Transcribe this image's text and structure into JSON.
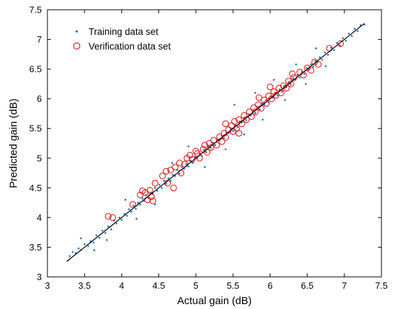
{
  "chart_data": {
    "type": "scatter",
    "xlabel": "Actual gain (dB)",
    "ylabel": "Predicted gain (dB)",
    "xlim": [
      3,
      7.5
    ],
    "ylim": [
      3,
      7.5
    ],
    "xticks": [
      "3",
      "3.5",
      "4",
      "4.5",
      "5",
      "5.5",
      "6",
      "6.5",
      "7",
      "7.5"
    ],
    "yticks": [
      "3",
      "3.5",
      "4",
      "4.5",
      "5",
      "5.5",
      "6",
      "6.5",
      "7",
      "7.5"
    ],
    "grid": false,
    "legend_position": "top-left",
    "fit_line": {
      "x": [
        3.27,
        7.27
      ],
      "y": [
        3.27,
        7.27
      ]
    },
    "series": [
      {
        "name": "Training data set",
        "marker": "dot",
        "color": "#1f6fb2",
        "points": [
          [
            3.27,
            3.27
          ],
          [
            3.3,
            3.35
          ],
          [
            3.34,
            3.42
          ],
          [
            3.38,
            3.4
          ],
          [
            3.42,
            3.48
          ],
          [
            3.45,
            3.45
          ],
          [
            3.5,
            3.55
          ],
          [
            3.55,
            3.52
          ],
          [
            3.58,
            3.6
          ],
          [
            3.62,
            3.58
          ],
          [
            3.66,
            3.7
          ],
          [
            3.7,
            3.66
          ],
          [
            3.74,
            3.78
          ],
          [
            3.78,
            3.74
          ],
          [
            3.82,
            3.85
          ],
          [
            3.86,
            3.8
          ],
          [
            3.9,
            3.95
          ],
          [
            3.93,
            3.9
          ],
          [
            3.97,
            4.0
          ],
          [
            4.0,
            3.96
          ],
          [
            4.04,
            4.06
          ],
          [
            4.07,
            4.03
          ],
          [
            4.1,
            4.14
          ],
          [
            4.13,
            4.1
          ],
          [
            4.16,
            4.2
          ],
          [
            4.19,
            4.15
          ],
          [
            4.22,
            4.25
          ],
          [
            4.25,
            4.22
          ],
          [
            4.28,
            4.32
          ],
          [
            4.3,
            4.28
          ],
          [
            4.33,
            4.38
          ],
          [
            4.36,
            4.33
          ],
          [
            4.39,
            4.42
          ],
          [
            4.42,
            4.4
          ],
          [
            4.45,
            4.5
          ],
          [
            4.48,
            4.45
          ],
          [
            4.51,
            4.55
          ],
          [
            4.54,
            4.5
          ],
          [
            4.57,
            4.62
          ],
          [
            4.6,
            4.57
          ],
          [
            4.63,
            4.66
          ],
          [
            4.66,
            4.62
          ],
          [
            4.69,
            4.72
          ],
          [
            4.72,
            4.7
          ],
          [
            4.75,
            4.8
          ],
          [
            4.78,
            4.74
          ],
          [
            4.81,
            4.85
          ],
          [
            4.84,
            4.82
          ],
          [
            4.87,
            4.9
          ],
          [
            4.9,
            4.86
          ],
          [
            4.93,
            4.96
          ],
          [
            4.96,
            4.92
          ],
          [
            4.99,
            5.02
          ],
          [
            5.02,
            5.0
          ],
          [
            5.05,
            5.08
          ],
          [
            5.08,
            5.04
          ],
          [
            5.11,
            5.14
          ],
          [
            5.14,
            5.1
          ],
          [
            5.17,
            5.2
          ],
          [
            5.2,
            5.17
          ],
          [
            5.23,
            5.26
          ],
          [
            5.26,
            5.22
          ],
          [
            5.29,
            5.32
          ],
          [
            5.32,
            5.3
          ],
          [
            5.35,
            5.38
          ],
          [
            5.38,
            5.34
          ],
          [
            5.41,
            5.44
          ],
          [
            5.44,
            5.42
          ],
          [
            5.47,
            5.5
          ],
          [
            5.5,
            5.46
          ],
          [
            5.53,
            5.56
          ],
          [
            5.56,
            5.52
          ],
          [
            5.59,
            5.62
          ],
          [
            5.62,
            5.6
          ],
          [
            5.65,
            5.68
          ],
          [
            5.68,
            5.64
          ],
          [
            5.71,
            5.74
          ],
          [
            5.74,
            5.72
          ],
          [
            5.77,
            5.8
          ],
          [
            5.8,
            5.76
          ],
          [
            5.83,
            5.86
          ],
          [
            5.86,
            5.82
          ],
          [
            5.89,
            5.92
          ],
          [
            5.92,
            5.9
          ],
          [
            5.95,
            5.98
          ],
          [
            5.98,
            5.94
          ],
          [
            6.01,
            6.04
          ],
          [
            6.04,
            6.02
          ],
          [
            6.07,
            6.1
          ],
          [
            6.1,
            6.06
          ],
          [
            6.13,
            6.16
          ],
          [
            6.16,
            6.12
          ],
          [
            6.19,
            6.22
          ],
          [
            6.22,
            6.2
          ],
          [
            6.25,
            6.28
          ],
          [
            6.28,
            6.24
          ],
          [
            6.31,
            6.34
          ],
          [
            6.34,
            6.32
          ],
          [
            6.37,
            6.4
          ],
          [
            6.4,
            6.36
          ],
          [
            6.43,
            6.46
          ],
          [
            6.46,
            6.42
          ],
          [
            6.49,
            6.52
          ],
          [
            6.52,
            6.5
          ],
          [
            6.55,
            6.58
          ],
          [
            6.58,
            6.54
          ],
          [
            6.61,
            6.64
          ],
          [
            6.64,
            6.62
          ],
          [
            6.67,
            6.7
          ],
          [
            6.7,
            6.66
          ],
          [
            6.74,
            6.78
          ],
          [
            6.78,
            6.74
          ],
          [
            6.82,
            6.86
          ],
          [
            6.86,
            6.82
          ],
          [
            6.9,
            6.94
          ],
          [
            6.94,
            6.9
          ],
          [
            6.98,
            7.02
          ],
          [
            7.02,
            6.98
          ],
          [
            7.06,
            7.1
          ],
          [
            7.1,
            7.06
          ],
          [
            7.14,
            7.18
          ],
          [
            7.18,
            7.14
          ],
          [
            7.22,
            7.24
          ],
          [
            7.27,
            7.25
          ],
          [
            3.45,
            3.65
          ],
          [
            3.63,
            3.45
          ],
          [
            3.8,
            3.62
          ],
          [
            4.05,
            4.3
          ],
          [
            4.2,
            3.98
          ],
          [
            4.45,
            4.22
          ],
          [
            4.68,
            4.92
          ],
          [
            4.9,
            5.2
          ],
          [
            5.12,
            4.85
          ],
          [
            5.4,
            5.15
          ],
          [
            5.52,
            5.9
          ],
          [
            5.65,
            5.4
          ],
          [
            5.8,
            6.1
          ],
          [
            5.9,
            5.65
          ],
          [
            6.05,
            6.32
          ],
          [
            6.2,
            5.98
          ],
          [
            6.35,
            6.58
          ],
          [
            6.48,
            6.25
          ],
          [
            6.62,
            6.85
          ],
          [
            6.75,
            6.55
          ]
        ]
      },
      {
        "name": "Verification data set",
        "marker": "circle",
        "color": "#e31a1c",
        "points": [
          [
            3.82,
            4.02
          ],
          [
            3.88,
            4.0
          ],
          [
            4.15,
            4.22
          ],
          [
            4.25,
            4.38
          ],
          [
            4.28,
            4.45
          ],
          [
            4.32,
            4.42
          ],
          [
            4.35,
            4.3
          ],
          [
            4.38,
            4.46
          ],
          [
            4.4,
            4.35
          ],
          [
            4.42,
            4.28
          ],
          [
            4.55,
            4.7
          ],
          [
            4.6,
            4.78
          ],
          [
            4.62,
            4.58
          ],
          [
            4.66,
            4.8
          ],
          [
            4.7,
            4.5
          ],
          [
            4.72,
            4.85
          ],
          [
            4.78,
            4.92
          ],
          [
            4.8,
            4.75
          ],
          [
            4.85,
            4.9
          ],
          [
            4.88,
            5.0
          ],
          [
            4.92,
            5.05
          ],
          [
            4.95,
            4.98
          ],
          [
            5.0,
            5.12
          ],
          [
            5.02,
            5.08
          ],
          [
            5.05,
            5.0
          ],
          [
            5.1,
            5.15
          ],
          [
            5.12,
            5.22
          ],
          [
            5.15,
            5.1
          ],
          [
            5.18,
            5.25
          ],
          [
            5.2,
            5.18
          ],
          [
            5.24,
            5.3
          ],
          [
            5.28,
            5.22
          ],
          [
            5.32,
            5.36
          ],
          [
            5.35,
            5.28
          ],
          [
            5.38,
            5.42
          ],
          [
            5.4,
            5.35
          ],
          [
            5.44,
            5.48
          ],
          [
            5.48,
            5.55
          ],
          [
            5.5,
            5.45
          ],
          [
            5.52,
            5.62
          ],
          [
            5.55,
            5.5
          ],
          [
            5.58,
            5.65
          ],
          [
            5.62,
            5.58
          ],
          [
            5.65,
            5.72
          ],
          [
            5.68,
            5.65
          ],
          [
            5.72,
            5.78
          ],
          [
            5.75,
            5.7
          ],
          [
            5.78,
            5.85
          ],
          [
            5.8,
            5.78
          ],
          [
            5.84,
            5.9
          ],
          [
            5.88,
            5.84
          ],
          [
            5.92,
            5.98
          ],
          [
            5.95,
            5.92
          ],
          [
            5.98,
            6.05
          ],
          [
            6.02,
            6.0
          ],
          [
            6.05,
            6.12
          ],
          [
            6.08,
            6.06
          ],
          [
            6.12,
            6.18
          ],
          [
            6.15,
            6.1
          ],
          [
            6.18,
            6.22
          ],
          [
            6.22,
            6.18
          ],
          [
            6.25,
            6.3
          ],
          [
            6.28,
            6.25
          ],
          [
            6.32,
            6.36
          ],
          [
            6.4,
            6.45
          ],
          [
            6.45,
            6.4
          ],
          [
            6.5,
            6.52
          ],
          [
            6.55,
            6.48
          ],
          [
            6.6,
            6.62
          ],
          [
            6.65,
            6.58
          ],
          [
            6.8,
            6.85
          ],
          [
            6.95,
            6.93
          ],
          [
            5.4,
            5.58
          ],
          [
            5.58,
            5.42
          ],
          [
            6.0,
            6.2
          ],
          [
            4.45,
            4.58
          ],
          [
            5.85,
            6.02
          ],
          [
            6.3,
            6.42
          ]
        ]
      }
    ]
  }
}
